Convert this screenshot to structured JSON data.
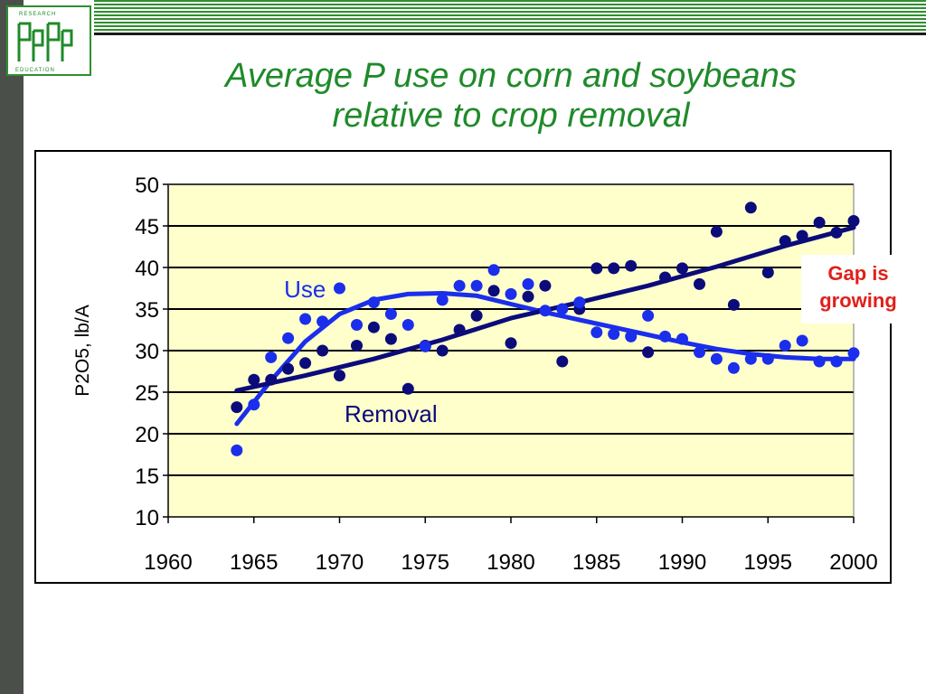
{
  "title": {
    "line1": "Average P use on corn and soybeans",
    "line2": "relative to crop removal"
  },
  "logo": {
    "top_text": "RESEARCH",
    "bottom_text": "EDUCATION",
    "letters": "PPI PPIC"
  },
  "annotation": "Gap is growing",
  "colors": {
    "title": "#1f8a2a",
    "plot_background": "#ffffcc",
    "use_series": "#1a2eeb",
    "removal_series": "#0b0b7a",
    "annotation": "#e0201a"
  },
  "chart_data": {
    "type": "scatter",
    "title": "",
    "xlabel": "",
    "ylabel": "P2O5, lb/A",
    "xlim": [
      1960,
      2000
    ],
    "ylim": [
      10,
      50
    ],
    "x_ticks": [
      1960,
      1965,
      1970,
      1975,
      1980,
      1985,
      1990,
      1995,
      2000
    ],
    "y_ticks": [
      10,
      15,
      20,
      25,
      30,
      35,
      40,
      45,
      50
    ],
    "grid": "horizontal",
    "series": [
      {
        "name": "Use",
        "color": "#1a2eeb",
        "points": [
          [
            1964,
            18
          ],
          [
            1965,
            23.5
          ],
          [
            1966,
            29.2
          ],
          [
            1967,
            31.5
          ],
          [
            1968,
            33.8
          ],
          [
            1969,
            33.5
          ],
          [
            1970,
            37.5
          ],
          [
            1971,
            33.1
          ],
          [
            1972,
            35.8
          ],
          [
            1973,
            34.4
          ],
          [
            1974,
            33.1
          ],
          [
            1975,
            30.5
          ],
          [
            1976,
            36.1
          ],
          [
            1977,
            37.8
          ],
          [
            1978,
            37.8
          ],
          [
            1979,
            39.7
          ],
          [
            1980,
            36.8
          ],
          [
            1981,
            38
          ],
          [
            1982,
            34.8
          ],
          [
            1983,
            35
          ],
          [
            1984,
            35.8
          ],
          [
            1985,
            32.2
          ],
          [
            1986,
            32
          ],
          [
            1987,
            31.7
          ],
          [
            1988,
            34.2
          ],
          [
            1989,
            31.7
          ],
          [
            1990,
            31.4
          ],
          [
            1991,
            29.8
          ],
          [
            1992,
            29
          ],
          [
            1993,
            27.9
          ],
          [
            1994,
            29
          ],
          [
            1995,
            29
          ],
          [
            1996,
            30.6
          ],
          [
            1997,
            31.2
          ],
          [
            1998,
            28.7
          ],
          [
            1999,
            28.7
          ],
          [
            2000,
            29.7
          ]
        ],
        "trend": [
          [
            1964,
            21.2
          ],
          [
            1966,
            26.4
          ],
          [
            1968,
            31.1
          ],
          [
            1970,
            34.4
          ],
          [
            1972,
            36.1
          ],
          [
            1974,
            36.8
          ],
          [
            1976,
            36.9
          ],
          [
            1978,
            36.6
          ],
          [
            1980,
            35.6
          ],
          [
            1982,
            34.6
          ],
          [
            1984,
            33.7
          ],
          [
            1986,
            32.8
          ],
          [
            1988,
            31.9
          ],
          [
            1990,
            31
          ],
          [
            1992,
            30.2
          ],
          [
            1994,
            29.6
          ],
          [
            1996,
            29.2
          ],
          [
            1998,
            29
          ],
          [
            2000,
            29
          ]
        ]
      },
      {
        "name": "Removal",
        "color": "#0b0b7a",
        "points": [
          [
            1964,
            23.2
          ],
          [
            1965,
            26.5
          ],
          [
            1966,
            26.5
          ],
          [
            1967,
            27.8
          ],
          [
            1968,
            28.5
          ],
          [
            1969,
            30
          ],
          [
            1970,
            27
          ],
          [
            1971,
            30.6
          ],
          [
            1972,
            32.8
          ],
          [
            1973,
            31.4
          ],
          [
            1974,
            25.4
          ],
          [
            1975,
            30.6
          ],
          [
            1976,
            30
          ],
          [
            1977,
            32.5
          ],
          [
            1978,
            34.2
          ],
          [
            1979,
            37.2
          ],
          [
            1980,
            30.9
          ],
          [
            1981,
            36.5
          ],
          [
            1982,
            37.8
          ],
          [
            1983,
            28.7
          ],
          [
            1984,
            35
          ],
          [
            1985,
            39.9
          ],
          [
            1986,
            39.9
          ],
          [
            1987,
            40.2
          ],
          [
            1988,
            29.8
          ],
          [
            1989,
            38.8
          ],
          [
            1990,
            39.9
          ],
          [
            1991,
            38
          ],
          [
            1992,
            44.3
          ],
          [
            1993,
            35.5
          ],
          [
            1994,
            47.2
          ],
          [
            1995,
            39.4
          ],
          [
            1996,
            43.2
          ],
          [
            1997,
            43.8
          ],
          [
            1998,
            45.4
          ],
          [
            1999,
            44.2
          ],
          [
            2000,
            45.6
          ]
        ],
        "trend": [
          [
            1964,
            25.2
          ],
          [
            1968,
            27
          ],
          [
            1972,
            29
          ],
          [
            1976,
            31.3
          ],
          [
            1980,
            33.9
          ],
          [
            1984,
            35.8
          ],
          [
            1988,
            37.8
          ],
          [
            1992,
            40.1
          ],
          [
            1996,
            42.6
          ],
          [
            2000,
            44.8
          ]
        ]
      }
    ]
  }
}
